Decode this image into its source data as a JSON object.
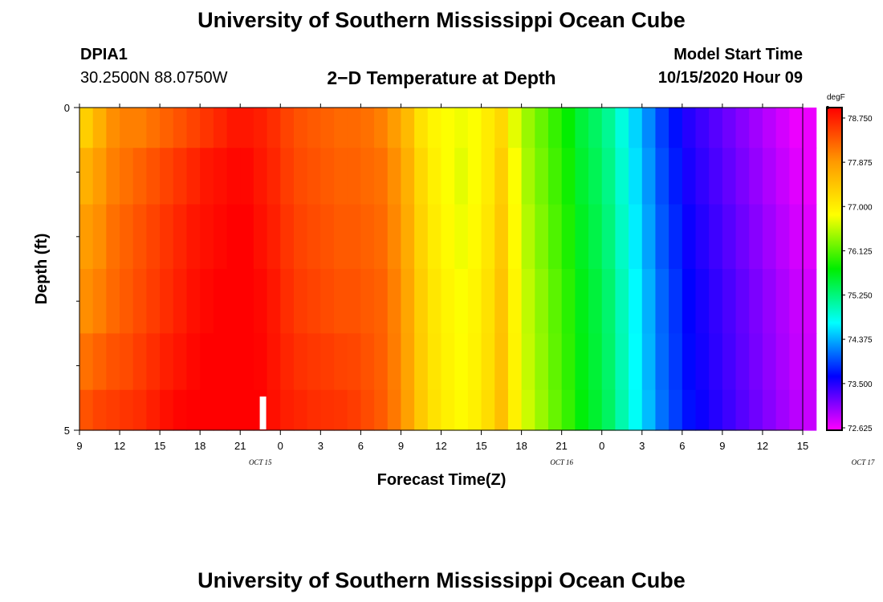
{
  "header": {
    "title_top": "University of Southern Mississippi Ocean Cube",
    "title_bottom": "University of Southern Mississippi Ocean Cube",
    "station": "DPIA1",
    "coords": "30.2500N 88.0750W",
    "model_start_label": "Model Start Time",
    "model_start_value": "10/15/2020 Hour 09"
  },
  "chart_data": {
    "type": "heatmap",
    "title": "2−D Temperature at Depth",
    "xlabel": "Forecast Time(Z)",
    "ylabel": "Depth (ft)",
    "x_start_hour": 9,
    "x_end_hour": 63,
    "x_tick_step_hours": 3,
    "x_tick_labels": [
      "9",
      "12",
      "15",
      "18",
      "21",
      "0",
      "3",
      "6",
      "9",
      "12",
      "15",
      "18",
      "21",
      "0",
      "3",
      "6",
      "9",
      "12",
      "15"
    ],
    "date_labels": [
      {
        "text": "OCT 15",
        "hour": 22.5
      },
      {
        "text": "OCT 16",
        "hour": 45
      },
      {
        "text": "OCT 17",
        "hour": 67.5
      }
    ],
    "y_range": [
      0,
      5
    ],
    "y_tick_labels": [
      "0",
      "5"
    ],
    "y_minor_ticks": [
      1,
      2,
      3,
      4
    ],
    "depth_levels": [
      0.25,
      1.0,
      2.0,
      3.0,
      4.0,
      4.75
    ],
    "temperatures_degF": [
      [
        77.2,
        77.5,
        77.8,
        77.9,
        77.9,
        78.0,
        78.1,
        78.2,
        78.3,
        78.4,
        78.5,
        78.6,
        78.6,
        78.55,
        78.45,
        78.3,
        78.2,
        78.15,
        78.1,
        78.05,
        78.05,
        78.0,
        77.9,
        77.7,
        77.4,
        77.0,
        76.8,
        76.7,
        76.65,
        76.7,
        76.9,
        77.1,
        76.6,
        76.3,
        76.1,
        75.9,
        75.7,
        75.45,
        75.3,
        75.1,
        74.8,
        74.5,
        74.2,
        73.9,
        73.7,
        73.5,
        73.4,
        73.3,
        73.2,
        73.1,
        73.0,
        72.9,
        72.8,
        72.7,
        72.7
      ],
      [
        77.5,
        77.7,
        77.9,
        78.0,
        78.1,
        78.2,
        78.3,
        78.4,
        78.5,
        78.6,
        78.65,
        78.7,
        78.7,
        78.6,
        78.5,
        78.35,
        78.25,
        78.2,
        78.15,
        78.1,
        78.1,
        78.05,
        78.0,
        77.8,
        77.5,
        77.1,
        76.85,
        76.7,
        76.6,
        76.7,
        76.9,
        77.2,
        76.7,
        76.35,
        76.15,
        75.95,
        75.75,
        75.5,
        75.35,
        75.15,
        74.85,
        74.55,
        74.25,
        73.95,
        73.75,
        73.55,
        73.45,
        73.35,
        73.25,
        73.15,
        73.05,
        72.95,
        72.85,
        72.75,
        72.7
      ],
      [
        77.7,
        77.8,
        78.0,
        78.1,
        78.2,
        78.3,
        78.4,
        78.5,
        78.6,
        78.65,
        78.7,
        78.75,
        78.75,
        78.65,
        78.55,
        78.4,
        78.3,
        78.25,
        78.2,
        78.15,
        78.15,
        78.1,
        78.05,
        77.85,
        77.55,
        77.15,
        76.9,
        76.75,
        76.65,
        76.75,
        76.95,
        77.25,
        76.75,
        76.4,
        76.2,
        76.0,
        75.8,
        75.55,
        75.4,
        75.2,
        74.9,
        74.6,
        74.3,
        74.0,
        73.8,
        73.6,
        73.5,
        73.4,
        73.3,
        73.2,
        73.1,
        73.0,
        72.9,
        72.8,
        72.75
      ],
      [
        77.8,
        77.9,
        78.05,
        78.15,
        78.25,
        78.35,
        78.45,
        78.55,
        78.65,
        78.7,
        78.75,
        78.8,
        78.8,
        78.7,
        78.6,
        78.45,
        78.35,
        78.3,
        78.25,
        78.2,
        78.2,
        78.15,
        78.1,
        77.9,
        77.6,
        77.2,
        76.95,
        76.8,
        76.7,
        76.8,
        77.0,
        77.3,
        76.8,
        76.45,
        76.25,
        76.05,
        75.85,
        75.6,
        75.45,
        75.25,
        74.95,
        74.65,
        74.35,
        74.05,
        73.85,
        73.65,
        73.55,
        73.45,
        73.35,
        73.25,
        73.15,
        73.05,
        72.95,
        72.85,
        72.8
      ],
      [
        78.0,
        78.1,
        78.2,
        78.25,
        78.35,
        78.45,
        78.55,
        78.62,
        78.7,
        78.75,
        78.8,
        78.82,
        78.82,
        78.72,
        78.62,
        78.5,
        78.42,
        78.38,
        78.35,
        78.3,
        78.28,
        78.2,
        78.12,
        77.92,
        77.62,
        77.22,
        76.97,
        76.82,
        76.72,
        76.82,
        77.02,
        77.32,
        76.82,
        76.47,
        76.27,
        76.07,
        75.87,
        75.62,
        75.47,
        75.27,
        74.97,
        74.67,
        74.37,
        74.07,
        73.87,
        73.67,
        73.57,
        73.47,
        73.37,
        73.27,
        73.17,
        73.07,
        72.97,
        72.87,
        72.82
      ],
      [
        78.2,
        78.3,
        78.35,
        78.4,
        78.45,
        78.55,
        78.65,
        78.72,
        78.75,
        78.78,
        78.82,
        78.85,
        78.85,
        78.75,
        78.65,
        78.55,
        78.5,
        78.45,
        78.42,
        78.4,
        78.35,
        78.25,
        78.15,
        77.95,
        77.65,
        77.25,
        77.0,
        76.85,
        76.75,
        76.85,
        77.05,
        77.35,
        76.85,
        76.5,
        76.3,
        76.1,
        75.9,
        75.65,
        75.5,
        75.3,
        75.0,
        74.7,
        74.4,
        74.1,
        73.9,
        73.7,
        73.6,
        73.5,
        73.4,
        73.3,
        73.2,
        73.1,
        73.0,
        72.9,
        72.85
      ]
    ],
    "colorbar": {
      "units": "degF",
      "min": 72.625,
      "max": 78.75,
      "labels": [
        "78.750",
        "77.875",
        "77.000",
        "76.125",
        "75.250",
        "74.375",
        "73.500",
        "72.625"
      ]
    },
    "marker_hour": 22.7,
    "colors": [
      "#ff00ff",
      "#0000ff",
      "#00ffff",
      "#00ee00",
      "#ffff00",
      "#ff9900",
      "#ff0000"
    ]
  }
}
